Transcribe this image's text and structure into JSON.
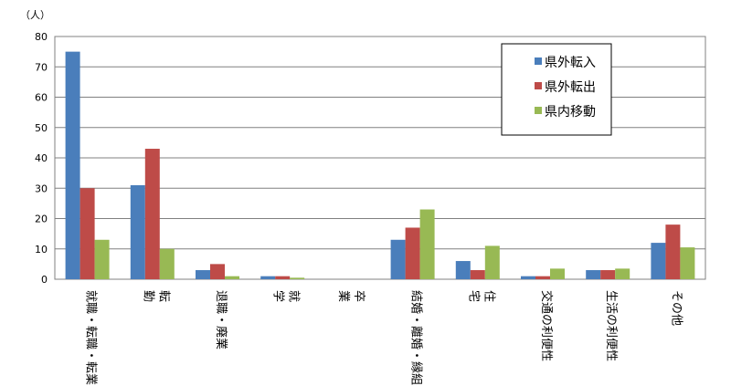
{
  "chart_data": {
    "type": "bar",
    "unit_label": "（人）",
    "categories": [
      "就職・転職・転業",
      "転勤",
      "退職・廃業",
      "就学",
      "卒業",
      "結婚・離婚・縁組",
      "住宅",
      "交通の利便性",
      "生活の利便性",
      "その他"
    ],
    "category_lines": [
      [
        "就職・転職・転業"
      ],
      [
        "転",
        "勤"
      ],
      [
        "退職・廃業"
      ],
      [
        "就",
        "学"
      ],
      [
        "卒",
        "業"
      ],
      [
        "結婚・離婚・縁組"
      ],
      [
        "住",
        "宅"
      ],
      [
        "交通の利便性"
      ],
      [
        "生活の利便性"
      ],
      [
        "その他"
      ]
    ],
    "series": [
      {
        "name": "県外転入",
        "color": "#4a7ebb",
        "values": [
          75,
          31,
          3,
          1,
          0,
          13,
          6,
          1,
          3,
          12
        ]
      },
      {
        "name": "県外転出",
        "color": "#be4b48",
        "values": [
          30,
          43,
          5,
          1,
          0,
          17,
          3,
          1,
          3,
          18
        ]
      },
      {
        "name": "県内移動",
        "color": "#98b954",
        "values": [
          13,
          10,
          1,
          0.5,
          0,
          23,
          11,
          3.5,
          3.5,
          10.5
        ]
      }
    ],
    "ylim": [
      0,
      80
    ],
    "yticks": [
      0,
      10,
      20,
      30,
      40,
      50,
      60,
      70,
      80
    ],
    "grid": true,
    "legend_position": "top-right"
  }
}
